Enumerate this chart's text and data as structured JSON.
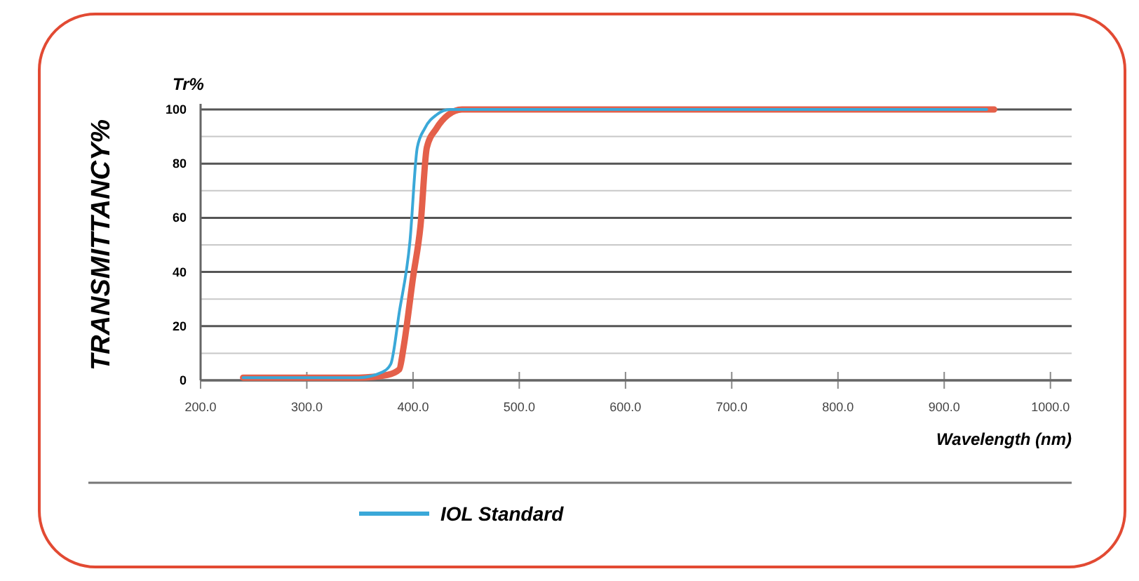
{
  "chart_data": {
    "type": "line",
    "ylabel": "TRANSMITTANCY%",
    "xlabel": "Wavelength (nm)",
    "annotations": [
      "Tr%"
    ],
    "xlim": [
      200,
      1020
    ],
    "xticks": [
      {
        "value": 200,
        "label": "200.0"
      },
      {
        "value": 300,
        "label": "300.0"
      },
      {
        "value": 400,
        "label": "400.0"
      },
      {
        "value": 500,
        "label": "500.0"
      },
      {
        "value": 600,
        "label": "600.0"
      },
      {
        "value": 700,
        "label": "700.0"
      },
      {
        "value": 800,
        "label": "800.0"
      },
      {
        "value": 900,
        "label": "900.0"
      },
      {
        "value": 1000,
        "label": "1000.0"
      }
    ],
    "ylim": [
      0,
      100
    ],
    "yticks": [
      0,
      {
        "value": 10,
        "label": null
      },
      20,
      {
        "value": 30,
        "label": null
      },
      40,
      {
        "value": 50,
        "label": null
      },
      60,
      {
        "value": 70,
        "label": null
      },
      80,
      {
        "value": 90,
        "label": null
      },
      100
    ],
    "grid": "y",
    "legend": "bottom",
    "marker": "none",
    "line_style": "solid",
    "series": [
      {
        "name": "IOL Standard",
        "color": "#3aa8d8",
        "x": [
          240,
          349,
          371,
          379,
          387,
          397,
          404,
          411,
          422,
          435,
          940
        ],
        "values": [
          1,
          1,
          3,
          6,
          25,
          51,
          86,
          93,
          98,
          100,
          100
        ]
      },
      {
        "color": "#e4604a",
        "x": [
          240,
          349,
          376,
          387,
          391,
          400,
          407,
          413,
          422,
          433,
          446,
          947
        ],
        "values": [
          1,
          1,
          2,
          4,
          12,
          38,
          57,
          86,
          93,
          98,
          100,
          100
        ]
      }
    ]
  }
}
